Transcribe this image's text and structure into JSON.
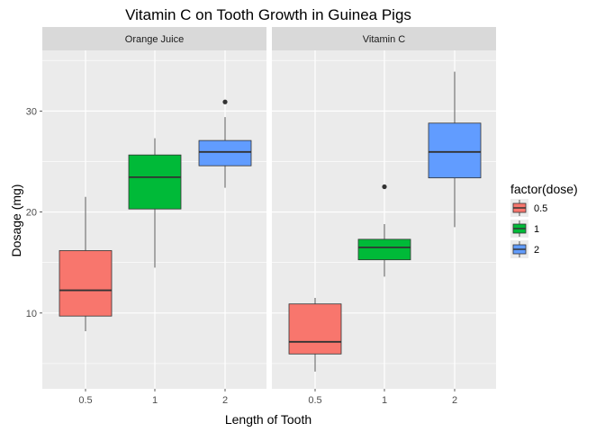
{
  "chart_data": {
    "type": "boxplot",
    "title": "Vitamin C on Tooth Growth in Guinea Pigs",
    "xlabel": "Length of Tooth",
    "ylabel": "Dosage (mg)",
    "categories": [
      "0.5",
      "1",
      "2"
    ],
    "ylim": [
      2.5,
      36
    ],
    "yticks": [
      10,
      20,
      30
    ],
    "grid": true,
    "legend": {
      "title": "factor(dose)",
      "position": "right",
      "entries": [
        {
          "label": "0.5",
          "color": "#F8766D"
        },
        {
          "label": "1",
          "color": "#00BA38"
        },
        {
          "label": "2",
          "color": "#619CFF"
        }
      ]
    },
    "panels": [
      {
        "label": "Orange Juice",
        "boxes": [
          {
            "category": "0.5",
            "min": 8.2,
            "q1": 9.7,
            "median": 12.25,
            "q3": 16.18,
            "max": 21.5,
            "outliers": []
          },
          {
            "category": "1",
            "min": 14.5,
            "q1": 20.3,
            "median": 23.45,
            "q3": 25.65,
            "max": 27.3,
            "outliers": []
          },
          {
            "category": "2",
            "min": 22.4,
            "q1": 24.58,
            "median": 25.95,
            "q3": 27.08,
            "max": 29.4,
            "outliers": [
              30.9
            ]
          }
        ]
      },
      {
        "label": "Vitamin C",
        "boxes": [
          {
            "category": "0.5",
            "min": 4.2,
            "q1": 5.95,
            "median": 7.15,
            "q3": 10.9,
            "max": 11.5,
            "outliers": []
          },
          {
            "category": "1",
            "min": 13.6,
            "q1": 15.27,
            "median": 16.5,
            "q3": 17.3,
            "max": 18.8,
            "outliers": [
              22.5
            ]
          },
          {
            "category": "2",
            "min": 18.5,
            "q1": 23.38,
            "median": 25.95,
            "q3": 28.8,
            "max": 33.9,
            "outliers": []
          }
        ]
      }
    ],
    "colors": {
      "panel_bg": "#EBEBEB",
      "strip_bg": "#D9D9D9",
      "grid": "#FFFFFF",
      "box_outline": "#333333"
    }
  }
}
